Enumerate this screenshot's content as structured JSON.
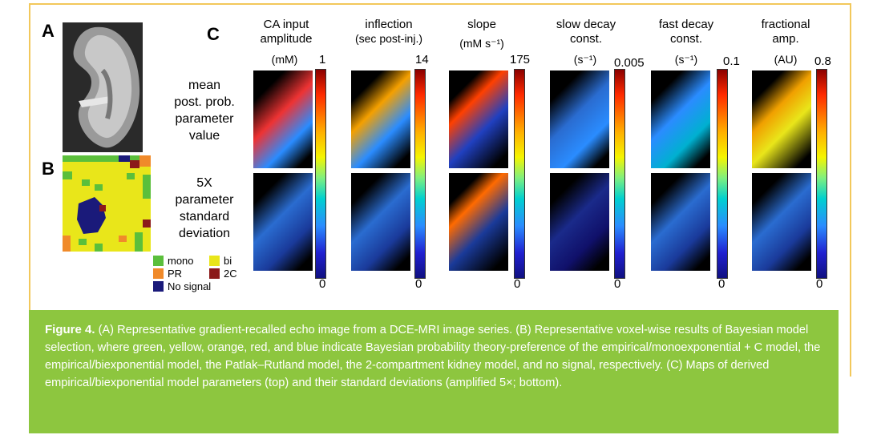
{
  "panel_labels": {
    "a": "A",
    "b": "B",
    "c": "C"
  },
  "legend": [
    {
      "label": "mono",
      "color": "#5bbf3b"
    },
    {
      "label": "bi",
      "color": "#e9e61a"
    },
    {
      "label": "PR",
      "color": "#f08a2a"
    },
    {
      "label": "2C",
      "color": "#8b1a1a"
    },
    {
      "label": "No signal",
      "color": "#1a1a7a"
    }
  ],
  "columns": [
    {
      "title": "CA input\namplitude",
      "unit": "(mM)",
      "max": "1",
      "min": "0"
    },
    {
      "title": "inflection",
      "unit": "(sec post-inj.)",
      "max": "14",
      "min": "0"
    },
    {
      "title": "slope",
      "unit": "(mM s⁻¹)",
      "max": "175",
      "min": "0"
    },
    {
      "title": "slow decay\nconst.",
      "unit": "(s⁻¹)",
      "max": "0.005",
      "min": "0"
    },
    {
      "title": "fast decay\nconst.",
      "unit": "(s⁻¹)",
      "max": "0.1",
      "min": "0"
    },
    {
      "title": "fractional\namp.",
      "unit": "(AU)",
      "max": "0.8",
      "min": "0"
    }
  ],
  "row_labels": {
    "top": "mean\npost. prob.\nparameter\nvalue",
    "bottom": "5X\nparameter\nstandard\ndeviation"
  },
  "caption": {
    "label": "Figure 4.",
    "text": " (A) Representative gradient-recalled echo image from a DCE-MRI image series. (B) Representative voxel-wise results of Bayesian model selection, where green, yellow, orange, red, and blue indicate Bayesian probability theory-preference of the empirical/monoexponential + C model, the empirical/biexponential model, the Patlak–Rutland model, the 2-compartment kidney model, and no signal, respectively. (C) Maps of derived empirical/biexponential model parameters (top) and their standard deviations (amplified 5×; bottom)."
  }
}
